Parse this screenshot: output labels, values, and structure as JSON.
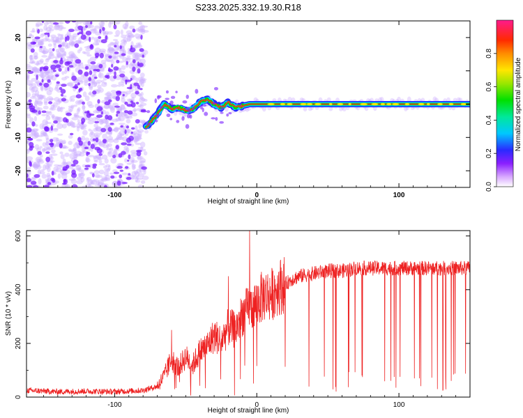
{
  "figure_title": "S233.2025.332.19.30.R18",
  "colors": {
    "signal_line": "#ee2222",
    "scatter_purple": "#7a1fff",
    "background": "#ffffff"
  },
  "chart_data": [
    {
      "type": "heatmap",
      "name": "spectrogram",
      "title": "S233.2025.332.19.30.R18",
      "xlabel": "Height of straight line (km)",
      "ylabel": "Frequency (Hz)",
      "xlim": [
        -162,
        150
      ],
      "ylim": [
        -25,
        25
      ],
      "x_ticks": [
        -100,
        0,
        100
      ],
      "x_tick_labels": [
        "-100",
        "0",
        "100"
      ],
      "y_ticks": [
        -20,
        -10,
        0,
        10,
        20
      ],
      "y_tick_labels": [
        "-20",
        "-10",
        "0",
        "10",
        "20"
      ],
      "noise_region_x": [
        -162,
        -78
      ],
      "ridge": {
        "x": [
          -78,
          -70,
          -65,
          -60,
          -55,
          -50,
          -45,
          -40,
          -35,
          -30,
          -25,
          -20,
          -15,
          -10,
          -5,
          0,
          10,
          50,
          100,
          150
        ],
        "frequency": [
          -7,
          -3,
          0,
          -1.5,
          -1,
          -2,
          -1.5,
          0.5,
          1.5,
          0,
          -1,
          0.5,
          -1,
          -0.5,
          0,
          0,
          0,
          0,
          0,
          0
        ]
      },
      "colorbar": {
        "label": "Normalized spectral amplitude",
        "range": [
          0,
          1
        ],
        "ticks": [
          0,
          0.2,
          0.4,
          0.6,
          0.8
        ],
        "tick_labels": [
          "0.0",
          "0.2",
          "0.4",
          "0.6",
          "0.8"
        ]
      }
    },
    {
      "type": "line",
      "name": "snr",
      "xlabel": "Height of straight line (km)",
      "ylabel": "SNR (10 * v/v)",
      "xlim": [
        -162,
        150
      ],
      "ylim": [
        0,
        620
      ],
      "x_ticks": [
        -100,
        0,
        100
      ],
      "x_tick_labels": [
        "-100",
        "0",
        "100"
      ],
      "y_ticks": [
        0,
        200,
        400,
        600
      ],
      "y_tick_labels": [
        "0",
        "200",
        "400",
        "600"
      ],
      "series": [
        {
          "name": "SNR",
          "x": [
            -162,
            -140,
            -120,
            -100,
            -80,
            -70,
            -65,
            -60,
            -55,
            -50,
            -45,
            -40,
            -35,
            -30,
            -25,
            -20,
            -15,
            -10,
            -5,
            0,
            5,
            10,
            15,
            20,
            25,
            30,
            40,
            50,
            60,
            70,
            80,
            90,
            100,
            110,
            120,
            130,
            140,
            150
          ],
          "values": [
            25,
            20,
            22,
            20,
            25,
            40,
            80,
            140,
            110,
            150,
            120,
            170,
            190,
            230,
            210,
            260,
            250,
            310,
            330,
            350,
            380,
            380,
            410,
            420,
            440,
            450,
            460,
            470,
            470,
            480,
            480,
            480,
            480,
            480,
            480,
            480,
            480,
            480
          ]
        }
      ],
      "peaks": [
        {
          "x": -5,
          "value": 620
        },
        {
          "x": -20,
          "value": 450
        },
        {
          "x": -60,
          "value": 250
        }
      ]
    }
  ]
}
